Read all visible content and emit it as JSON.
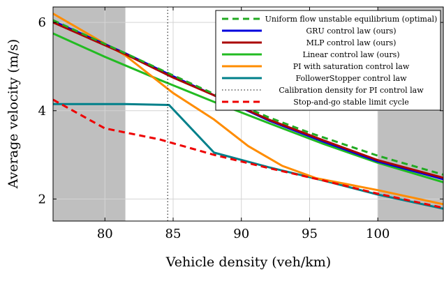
{
  "chart_data": {
    "type": "line",
    "xlabel": "Vehicle density (veh/km)",
    "ylabel": "Average velocity (m/s)",
    "xlim": [
      76.2,
      104.8
    ],
    "ylim": [
      1.5,
      6.35
    ],
    "xticks": [
      80,
      85,
      90,
      95,
      100
    ],
    "yticks": [
      2,
      4,
      6
    ],
    "grid": true,
    "legend_position": "top-right",
    "shaded_regions": [
      {
        "x": [
          76.2,
          81.5
        ],
        "color": "#bfbfbf"
      },
      {
        "x": [
          100,
          104.8
        ],
        "color": "#bfbfbf"
      }
    ],
    "calibration_density": 84.6,
    "series": [
      {
        "name": "Uniform flow unstable equilibrium (optimal)",
        "color": "#22aa22",
        "style": "dashed",
        "x": [
          76.2,
          81.5,
          85,
          88,
          92,
          95,
          100,
          104.8
        ],
        "y": [
          6.05,
          5.3,
          4.8,
          4.38,
          3.85,
          3.5,
          2.98,
          2.55
        ]
      },
      {
        "name": "GRU control law (ours)",
        "color": "#0000dd",
        "style": "solid",
        "x": [
          76.2,
          81.5,
          85,
          88,
          92,
          96,
          100,
          104.8
        ],
        "y": [
          6.03,
          5.3,
          4.78,
          4.35,
          3.78,
          3.3,
          2.85,
          2.45
        ]
      },
      {
        "name": "MLP control law (ours)",
        "color": "#aa0000",
        "style": "solid",
        "x": [
          76.2,
          81.5,
          85,
          88,
          92,
          96,
          100,
          104.8
        ],
        "y": [
          6.0,
          5.28,
          4.75,
          4.35,
          3.8,
          3.33,
          2.88,
          2.48
        ]
      },
      {
        "name": "Linear control law (ours)",
        "color": "#22bb22",
        "style": "solid",
        "x": [
          76.2,
          80,
          84,
          88,
          92,
          96,
          100,
          104.8
        ],
        "y": [
          5.75,
          5.22,
          4.7,
          4.2,
          3.72,
          3.25,
          2.82,
          2.38
        ]
      },
      {
        "name": "PI with saturation control law",
        "color": "#ff8c00",
        "style": "solid",
        "x": [
          76.2,
          81.5,
          85,
          88,
          90.5,
          93,
          95.5,
          100,
          104.8
        ],
        "y": [
          6.2,
          5.25,
          4.4,
          3.8,
          3.2,
          2.75,
          2.47,
          2.2,
          1.88
        ]
      },
      {
        "name": "FollowerStopper control law",
        "color": "#00808a",
        "style": "solid",
        "x": [
          76.2,
          81.5,
          84.7,
          88,
          92,
          96,
          100,
          104.8
        ],
        "y": [
          4.15,
          4.15,
          4.13,
          3.05,
          2.72,
          2.42,
          2.1,
          1.78
        ]
      },
      {
        "name": "Calibration density for PI control law",
        "color": "#000000",
        "style": "dotted",
        "x": [
          84.6,
          84.6
        ],
        "y": [
          1.5,
          6.35
        ]
      },
      {
        "name": "Stop-and-go stable limit cycle",
        "color": "#ee0000",
        "style": "dashed",
        "x": [
          76.2,
          80,
          84,
          88,
          92,
          96,
          100,
          104.8
        ],
        "y": [
          4.25,
          3.6,
          3.35,
          3.0,
          2.7,
          2.42,
          2.12,
          1.8
        ]
      }
    ]
  }
}
